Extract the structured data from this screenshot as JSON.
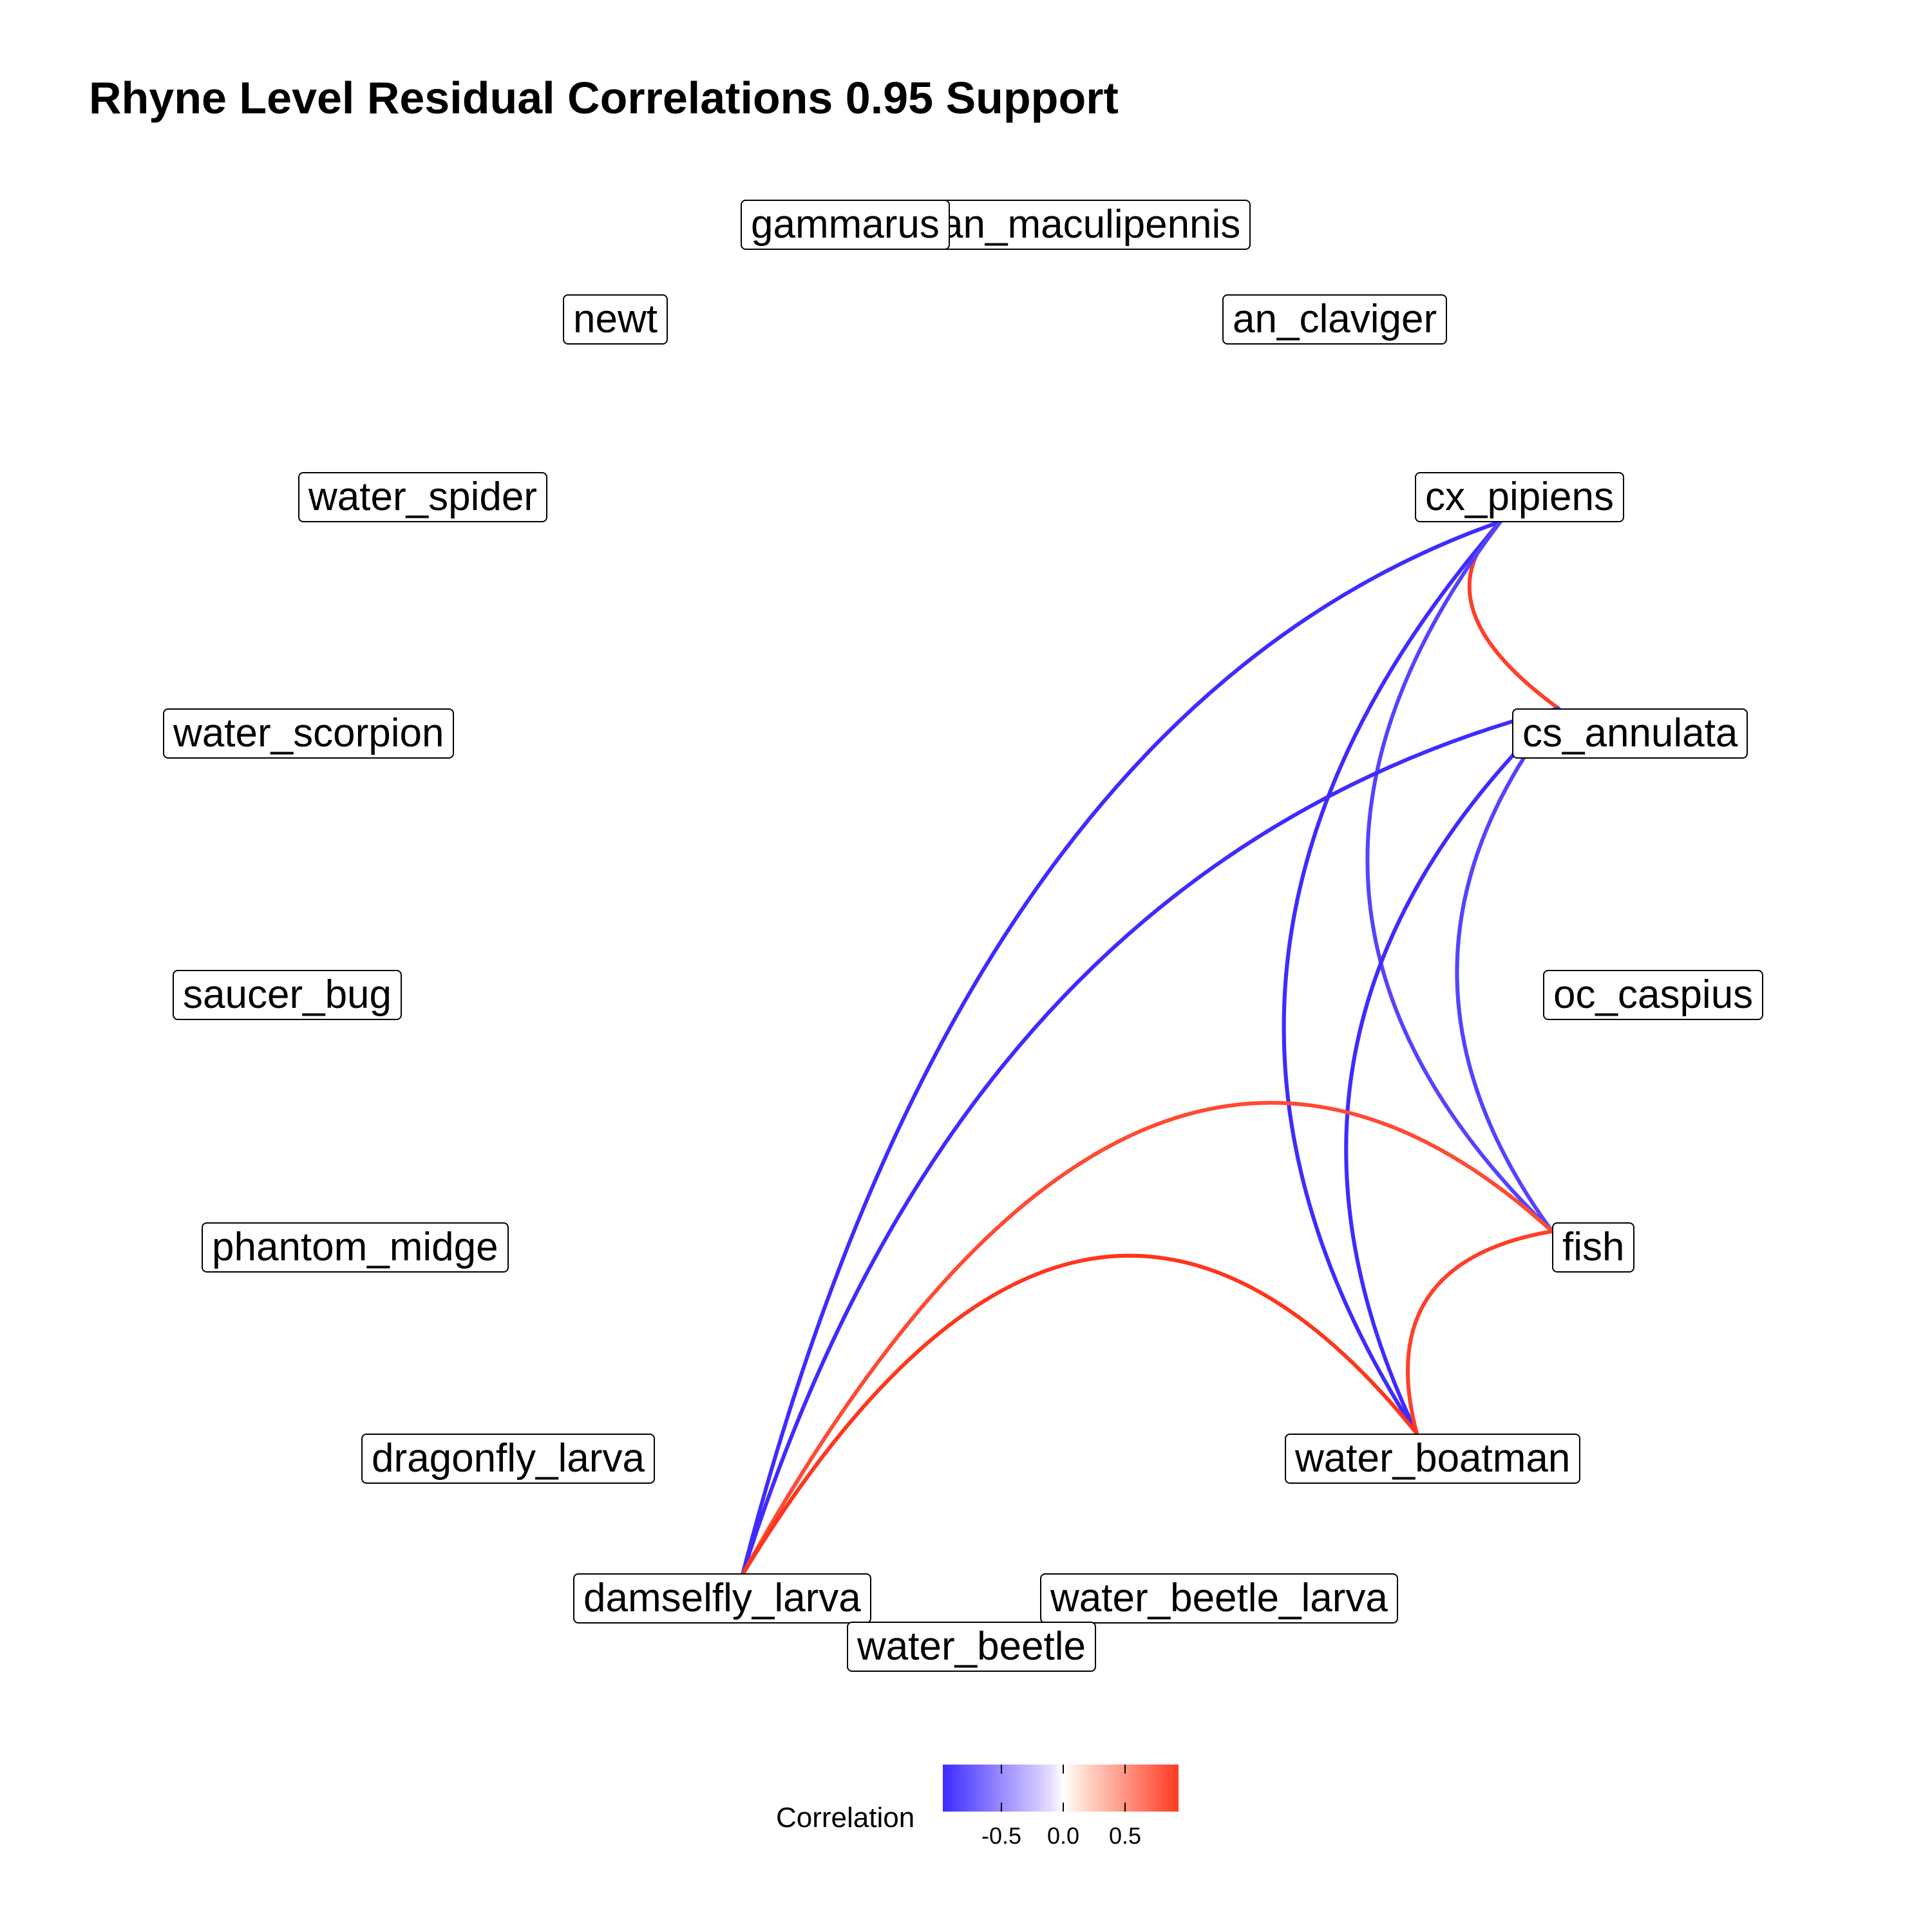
{
  "title": "Rhyne Level Residual Correlations 0.95 Support",
  "colors": {
    "negative": "#2a13ff",
    "positive": "#ff2a10",
    "neutral": "#ffffff"
  },
  "nodes": [
    {
      "id": "an_maculipennis",
      "label": "an_maculipennis"
    },
    {
      "id": "gammarus",
      "label": "gammarus"
    },
    {
      "id": "newt",
      "label": "newt"
    },
    {
      "id": "an_claviger",
      "label": "an_claviger"
    },
    {
      "id": "water_spider",
      "label": "water_spider"
    },
    {
      "id": "cx_pipiens",
      "label": "cx_pipiens"
    },
    {
      "id": "water_scorpion",
      "label": "water_scorpion"
    },
    {
      "id": "cs_annulata",
      "label": "cs_annulata"
    },
    {
      "id": "saucer_bug",
      "label": "saucer_bug"
    },
    {
      "id": "oc_caspius",
      "label": "oc_caspius"
    },
    {
      "id": "phantom_midge",
      "label": "phantom_midge"
    },
    {
      "id": "fish",
      "label": "fish"
    },
    {
      "id": "dragonfly_larva",
      "label": "dragonfly_larva"
    },
    {
      "id": "water_boatman",
      "label": "water_boatman"
    },
    {
      "id": "damselfly_larva",
      "label": "damselfly_larva"
    },
    {
      "id": "water_beetle_larva",
      "label": "water_beetle_larva"
    },
    {
      "id": "water_beetle",
      "label": "water_beetle"
    }
  ],
  "edges": [
    {
      "from": "cx_pipiens",
      "to": "cs_annulata",
      "correlation": 0.9
    },
    {
      "from": "cx_pipiens",
      "to": "damselfly_larva",
      "correlation": -0.9
    },
    {
      "from": "cx_pipiens",
      "to": "water_boatman",
      "correlation": -0.9
    },
    {
      "from": "cx_pipiens",
      "to": "fish",
      "correlation": -0.8
    },
    {
      "from": "cs_annulata",
      "to": "damselfly_larva",
      "correlation": -0.9
    },
    {
      "from": "cs_annulata",
      "to": "water_boatman",
      "correlation": -0.9
    },
    {
      "from": "cs_annulata",
      "to": "fish",
      "correlation": -0.8
    },
    {
      "from": "fish",
      "to": "damselfly_larva",
      "correlation": 0.85
    },
    {
      "from": "fish",
      "to": "water_boatman",
      "correlation": 0.9
    },
    {
      "from": "water_boatman",
      "to": "damselfly_larva",
      "correlation": 0.95
    }
  ],
  "legend": {
    "title": "Correlation",
    "ticks": [
      {
        "value": -0.5,
        "label": "-0.5"
      },
      {
        "value": 0.0,
        "label": "0.0"
      },
      {
        "value": 0.5,
        "label": "0.5"
      }
    ]
  }
}
